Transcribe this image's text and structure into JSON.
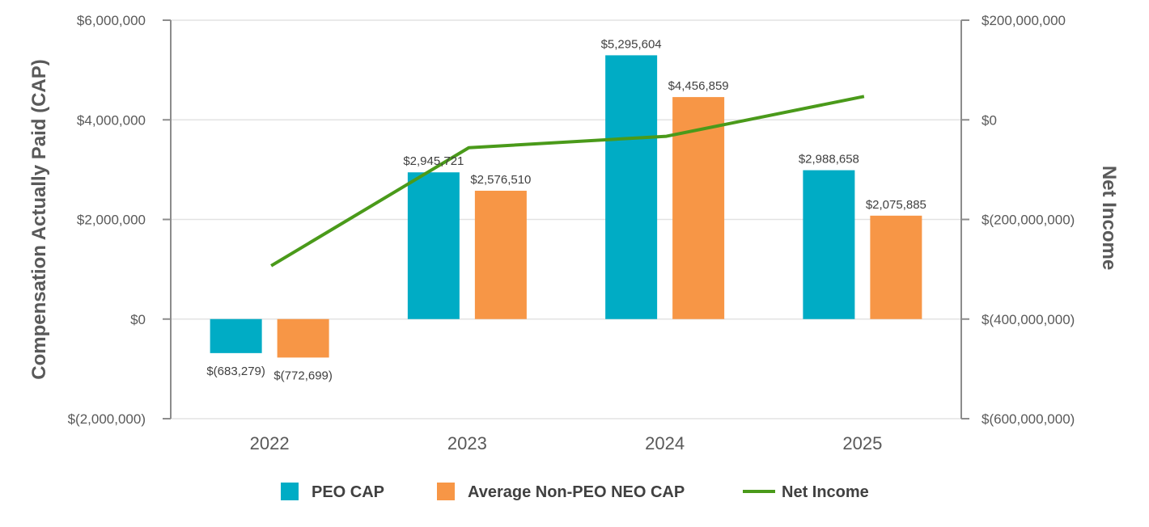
{
  "chart_data": {
    "type": "bar",
    "categories": [
      "2022",
      "2023",
      "2024",
      "2025"
    ],
    "series": [
      {
        "name": "PEO CAP",
        "type": "bar",
        "axis": "left",
        "color": "#00ACC5",
        "values": [
          -683279,
          2945721,
          5295604,
          2988658
        ],
        "labels": [
          "$(683,279)",
          "$2,945,721",
          "$5,295,604",
          "$2,988,658"
        ]
      },
      {
        "name": "Average Non-PEO NEO CAP",
        "type": "bar",
        "axis": "left",
        "color": "#F79646",
        "values": [
          -772699,
          2576510,
          4456859,
          2075885
        ],
        "labels": [
          "$(772,699)",
          "$2,576,510",
          "$4,456,859",
          "$2,075,885"
        ]
      },
      {
        "name": "Net Income",
        "type": "line",
        "axis": "right",
        "color": "#4A9A1A",
        "values": [
          -293000000,
          -56000000,
          -33000000,
          47000000
        ]
      }
    ],
    "ylabel": "Compensation Actually Paid (CAP)",
    "ylabel_right": "Net Income",
    "ylim": [
      -2000000,
      6000000
    ],
    "ylim_right": [
      -600000000,
      200000000
    ],
    "yticks": [
      6000000,
      4000000,
      2000000,
      0,
      -2000000
    ],
    "ytick_labels": [
      "$6,000,000",
      "$4,000,000",
      "$2,000,000",
      "$0",
      "$(2,000,000)"
    ],
    "yticks_right": [
      200000000,
      0,
      -200000000,
      -400000000,
      -600000000
    ],
    "ytick_labels_right": [
      "$200,000,000",
      "$0",
      "$(200,000,000)",
      "$(400,000,000)",
      "$(600,000,000)"
    ],
    "grid": true,
    "legend_position": "bottom"
  }
}
